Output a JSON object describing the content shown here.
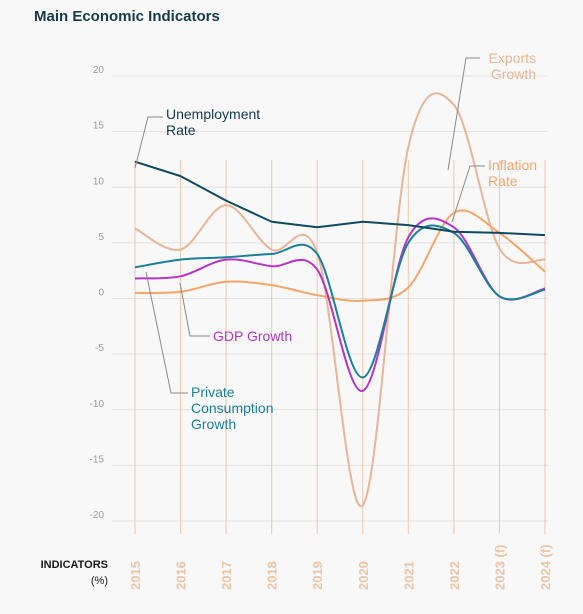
{
  "header": {
    "title": "Main Economic Indicators"
  },
  "footer": {
    "indicators_label": "INDICATORS",
    "unit": "(%)"
  },
  "colors": {
    "background": "#f8f8f8",
    "gridline": "#e2e2e2",
    "year_line": "#efc9ac",
    "tick_label": "#9a9a9a",
    "year_label": "#ecc4a6"
  },
  "chart_data": {
    "type": "line",
    "x": [
      "2015",
      "2016",
      "2017",
      "2018",
      "2019",
      "2020",
      "2021",
      "2022",
      "2023 (f)",
      "2024 (f)"
    ],
    "ylim": [
      -20,
      20
    ],
    "yticks": [
      20,
      15,
      10,
      5,
      0,
      -5,
      -10,
      -15,
      -20
    ],
    "grid": true,
    "series": [
      {
        "name": "Unemployment Rate",
        "label_lines": [
          "Unemployment",
          "Rate"
        ],
        "color": "#0d4a60",
        "values": [
          12.3,
          11.0,
          8.8,
          6.9,
          6.4,
          6.9,
          6.6,
          6.0,
          5.9,
          5.7
        ]
      },
      {
        "name": "Exports Growth",
        "label_lines": [
          "Exports",
          "Growth"
        ],
        "color": "#e8b596",
        "values": [
          6.3,
          4.4,
          8.4,
          4.4,
          4.1,
          -18.6,
          13.6,
          17.4,
          4.5,
          3.5
        ]
      },
      {
        "name": "Inflation Rate",
        "label_lines": [
          "Inflation",
          "Rate"
        ],
        "color": "#f5a56a",
        "values": [
          0.5,
          0.6,
          1.5,
          1.2,
          0.3,
          -0.2,
          1.0,
          7.7,
          5.9,
          2.4
        ]
      },
      {
        "name": "GDP Growth",
        "label_lines": [
          "GDP Growth"
        ],
        "color": "#b535c8",
        "values": [
          1.8,
          2.0,
          3.5,
          2.9,
          2.6,
          -8.3,
          5.5,
          6.4,
          0.2,
          0.9
        ]
      },
      {
        "name": "Private Consumption Growth",
        "label_lines": [
          "Private",
          "Consumption",
          "Growth"
        ],
        "color": "#1a7f98",
        "values": [
          2.8,
          3.5,
          3.7,
          4.0,
          4.0,
          -7.1,
          5.0,
          5.9,
          0.2,
          0.8
        ]
      }
    ]
  }
}
